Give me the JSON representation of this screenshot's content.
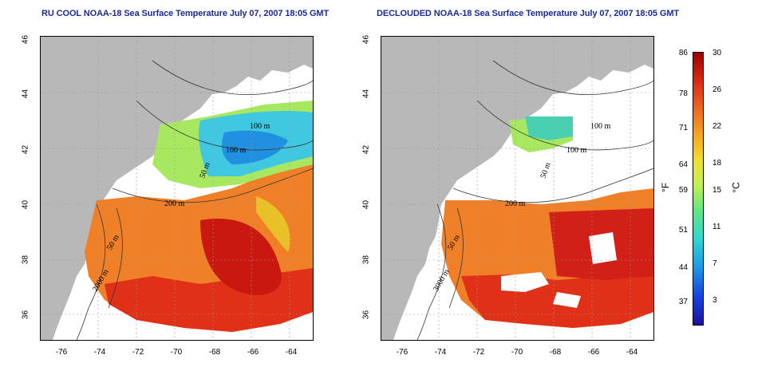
{
  "titles": {
    "left": "RU COOL NOAA-18 Sea Surface Temperature July 07, 2007 18:05 GMT",
    "right": "DECLOUDED NOAA-18 Sea Surface Temperature July 07, 2007 18:05 GMT"
  },
  "axes": {
    "lat_ticks": [
      "46",
      "44",
      "42",
      "40",
      "38",
      "36"
    ],
    "lon_ticks": [
      "-76",
      "-74",
      "-72",
      "-70",
      "-68",
      "-66",
      "-64"
    ]
  },
  "contour_labels": {
    "left": [
      "100 m",
      "100 m",
      "50 m",
      "200 m",
      "50 m",
      "2000 m"
    ],
    "right": [
      "100 m",
      "100 m",
      "50 m",
      "200 m",
      "50 m",
      "3000 m"
    ]
  },
  "colorbar": {
    "unit_f": "°F",
    "unit_c": "°C",
    "f_ticks": [
      "86",
      "78",
      "71",
      "64",
      "59",
      "51",
      "44",
      "37"
    ],
    "c_ticks": [
      "30",
      "26",
      "22",
      "18",
      "15",
      "11",
      "7",
      "3"
    ]
  },
  "colors": {
    "land": "#b8b8b8",
    "title": "#1a2a9a",
    "warm": "#e03018",
    "cool": "#30c8e8"
  }
}
